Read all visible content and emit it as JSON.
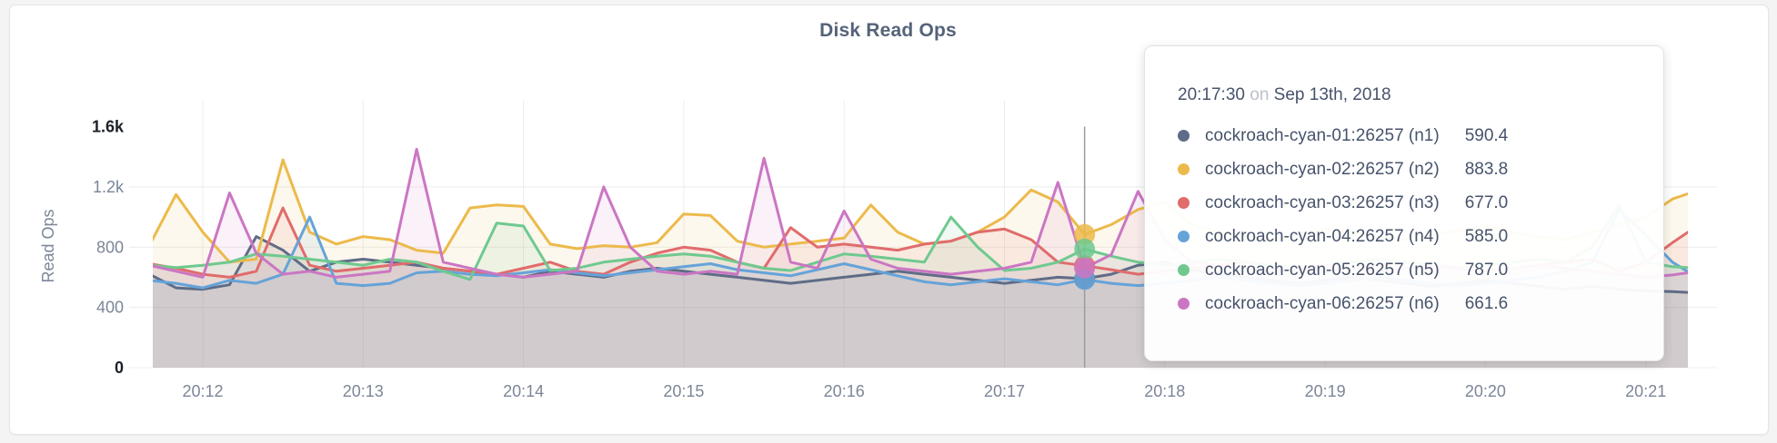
{
  "page": {
    "background_color": "#f4f4f5",
    "card_background": "#ffffff",
    "card_border_color": "#e5e5e5"
  },
  "chart_data": {
    "type": "area",
    "title": "Disk Read Ops",
    "ylabel": "Read Ops",
    "xlabel": "",
    "ylim": [
      0,
      1600
    ],
    "grid": true,
    "legend_position": "tooltip-only",
    "y_ticks": [
      {
        "value": 0,
        "label": "0",
        "emphasis": true
      },
      {
        "value": 400,
        "label": "400",
        "emphasis": false
      },
      {
        "value": 800,
        "label": "800",
        "emphasis": false
      },
      {
        "value": 1200,
        "label": "1.2k",
        "emphasis": false
      },
      {
        "value": 1600,
        "label": "1.6k",
        "emphasis": true
      }
    ],
    "x_ticks": [
      "20:12",
      "20:13",
      "20:14",
      "20:15",
      "20:16",
      "20:17",
      "20:18",
      "20:19",
      "20:20",
      "20:21"
    ],
    "x_start_time": "20:11:40",
    "x_step_seconds": 10,
    "series": [
      {
        "name": "cockroach-cyan-01:26257 (n1)",
        "color": "#5f6c87",
        "values": [
          620,
          530,
          520,
          550,
          870,
          780,
          640,
          700,
          720,
          700,
          680,
          660,
          640,
          620,
          600,
          640,
          620,
          600,
          640,
          660,
          640,
          620,
          600,
          580,
          560,
          580,
          600,
          620,
          640,
          620,
          600,
          580,
          560,
          580,
          600,
          590.4,
          620,
          680,
          700,
          650,
          620,
          600,
          580,
          560,
          580,
          600,
          580,
          560,
          540,
          560,
          580,
          560,
          540,
          520,
          540,
          520,
          510,
          505,
          495
        ]
      },
      {
        "name": "cockroach-cyan-02:26257 (n2)",
        "color": "#ecba4b",
        "values": [
          810,
          1150,
          900,
          700,
          720,
          1380,
          900,
          820,
          870,
          850,
          780,
          760,
          1060,
          1080,
          1070,
          820,
          790,
          810,
          800,
          830,
          1020,
          1010,
          840,
          800,
          820,
          840,
          860,
          1080,
          900,
          820,
          840,
          900,
          1000,
          1180,
          1100,
          883.8,
          950,
          1050,
          1100,
          950,
          900,
          870,
          850,
          880,
          920,
          900,
          870,
          850,
          880,
          910,
          940,
          900,
          870,
          850,
          900,
          950,
          1000,
          1120,
          1180
        ]
      },
      {
        "name": "cockroach-cyan-03:26257 (n3)",
        "color": "#e06c6c",
        "values": [
          690,
          660,
          620,
          600,
          640,
          1060,
          680,
          640,
          660,
          680,
          700,
          660,
          640,
          620,
          660,
          700,
          640,
          620,
          700,
          760,
          800,
          780,
          700,
          660,
          930,
          800,
          820,
          800,
          780,
          820,
          840,
          900,
          920,
          850,
          700,
          677,
          650,
          620,
          640,
          660,
          680,
          700,
          680,
          660,
          640,
          660,
          680,
          700,
          680,
          660,
          640,
          660,
          680,
          700,
          720,
          640,
          700,
          830,
          950
        ]
      },
      {
        "name": "cockroach-cyan-04:26257 (n4)",
        "color": "#65a3d9",
        "values": [
          580,
          560,
          530,
          580,
          560,
          620,
          1000,
          560,
          545,
          560,
          630,
          640,
          620,
          610,
          630,
          650,
          630,
          610,
          630,
          650,
          670,
          690,
          650,
          630,
          610,
          650,
          690,
          650,
          610,
          570,
          550,
          570,
          590,
          570,
          550,
          585,
          560,
          545,
          560,
          580,
          600,
          580,
          560,
          545,
          560,
          580,
          600,
          580,
          560,
          545,
          560,
          580,
          600,
          640,
          700,
          1050,
          880,
          700,
          590
        ]
      },
      {
        "name": "cockroach-cyan-05:26257 (n5)",
        "color": "#6fc98f",
        "values": [
          680,
          665,
          680,
          700,
          755,
          740,
          720,
          700,
          680,
          720,
          700,
          640,
          585,
          960,
          940,
          645,
          660,
          700,
          720,
          740,
          755,
          740,
          700,
          660,
          645,
          700,
          755,
          740,
          720,
          700,
          1000,
          800,
          645,
          660,
          700,
          787,
          740,
          700,
          680,
          700,
          720,
          700,
          680,
          660,
          680,
          700,
          720,
          700,
          680,
          660,
          680,
          700,
          720,
          700,
          800,
          1080,
          700,
          670,
          660
        ]
      },
      {
        "name": "cockroach-cyan-06:26257 (n6)",
        "color": "#cb76c3",
        "values": [
          680,
          640,
          600,
          1160,
          760,
          620,
          640,
          600,
          620,
          640,
          1450,
          700,
          660,
          620,
          600,
          620,
          640,
          1200,
          800,
          640,
          620,
          640,
          620,
          1390,
          700,
          660,
          1040,
          720,
          660,
          640,
          620,
          640,
          660,
          700,
          1230,
          661.6,
          750,
          1170,
          850,
          700,
          680,
          660,
          640,
          660,
          680,
          660,
          640,
          660,
          680,
          660,
          640,
          660,
          680,
          660,
          640,
          620,
          600,
          615,
          640
        ]
      }
    ],
    "hover": {
      "index": 35,
      "time": "20:17:30",
      "values": [
        590.4,
        883.8,
        677.0,
        585.0,
        787.0,
        661.6
      ]
    }
  },
  "tooltip": {
    "time": "20:17:30",
    "preposition": "on",
    "date": "Sep 13th, 2018",
    "rows": [
      {
        "label": "cockroach-cyan-01:26257 (n1)",
        "value": "590.4",
        "color": "#5f6c87"
      },
      {
        "label": "cockroach-cyan-02:26257 (n2)",
        "value": "883.8",
        "color": "#ecba4b"
      },
      {
        "label": "cockroach-cyan-03:26257 (n3)",
        "value": "677.0",
        "color": "#e06c6c"
      },
      {
        "label": "cockroach-cyan-04:26257 (n4)",
        "value": "585.0",
        "color": "#65a3d9"
      },
      {
        "label": "cockroach-cyan-05:26257 (n5)",
        "value": "787.0",
        "color": "#6fc98f"
      },
      {
        "label": "cockroach-cyan-06:26257 (n6)",
        "value": "661.6",
        "color": "#cb76c3"
      }
    ]
  }
}
